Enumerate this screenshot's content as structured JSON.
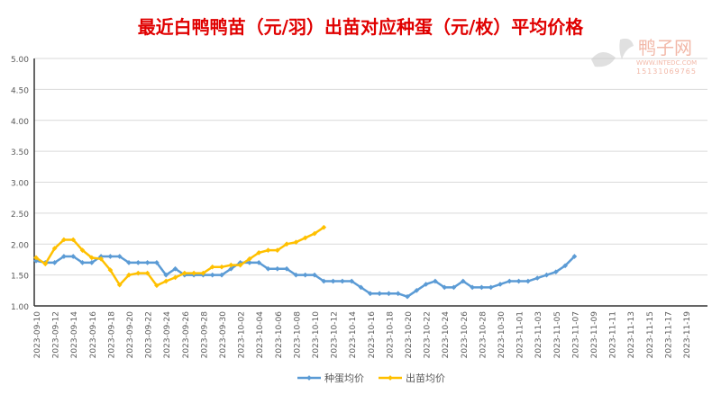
{
  "chart_data": {
    "type": "line",
    "title": "最近白鸭鸭苗（元/羽）出苗对应种蛋（元/枚）平均价格",
    "xlabel": "",
    "ylabel": "",
    "ylim": [
      1.0,
      5.0
    ],
    "yticks": [
      "1.00",
      "1.50",
      "2.00",
      "2.50",
      "3.00",
      "3.50",
      "4.00",
      "4.50",
      "5.00"
    ],
    "x_start": "2023-09-10",
    "xticks": [
      "2023-09-10",
      "2023-09-12",
      "2023-09-14",
      "2023-09-16",
      "2023-09-18",
      "2023-09-20",
      "2023-09-22",
      "2023-09-24",
      "2023-09-26",
      "2023-09-28",
      "2023-09-30",
      "2023-10-02",
      "2023-10-04",
      "2023-10-06",
      "2023-10-08",
      "2023-10-10",
      "2023-10-12",
      "2023-10-14",
      "2023-10-16",
      "2023-10-18",
      "2023-10-20",
      "2023-10-22",
      "2023-10-24",
      "2023-10-26",
      "2023-10-28",
      "2023-10-30",
      "2023-11-01",
      "2023-11-03",
      "2023-11-05",
      "2023-11-07",
      "2023-11-09",
      "2023-11-11",
      "2023-11-13",
      "2023-11-15",
      "2023-11-17",
      "2023-11-19"
    ],
    "grid": true,
    "legend_position": "bottom",
    "series": [
      {
        "name": "种蛋均价",
        "color": "#5b9bd5",
        "values": [
          1.73,
          1.7,
          1.7,
          1.8,
          1.8,
          1.7,
          1.7,
          1.8,
          1.8,
          1.8,
          1.7,
          1.7,
          1.7,
          1.7,
          1.5,
          1.6,
          1.5,
          1.5,
          1.5,
          1.5,
          1.5,
          1.6,
          1.7,
          1.7,
          1.7,
          1.6,
          1.6,
          1.6,
          1.5,
          1.5,
          1.5,
          1.4,
          1.4,
          1.4,
          1.4,
          1.3,
          1.2,
          1.2,
          1.2,
          1.2,
          1.15,
          1.25,
          1.35,
          1.4,
          1.3,
          1.3,
          1.4,
          1.3,
          1.3,
          1.3,
          1.35,
          1.4,
          1.4,
          1.4,
          1.45,
          1.5,
          1.55,
          1.65,
          1.8
        ]
      },
      {
        "name": "出苗均价",
        "color": "#ffc000",
        "values": [
          1.78,
          1.68,
          1.93,
          2.07,
          2.07,
          1.9,
          1.78,
          1.76,
          1.58,
          1.34,
          1.5,
          1.53,
          1.53,
          1.33,
          1.4,
          1.46,
          1.53,
          1.53,
          1.53,
          1.63,
          1.63,
          1.66,
          1.66,
          1.76,
          1.86,
          1.9,
          1.9,
          2.0,
          2.03,
          2.1,
          2.17,
          2.27
        ]
      }
    ]
  },
  "watermark": {
    "brand": "鸭子网",
    "url": "WWW.INTEDC.COM",
    "phone": "15131069765"
  }
}
